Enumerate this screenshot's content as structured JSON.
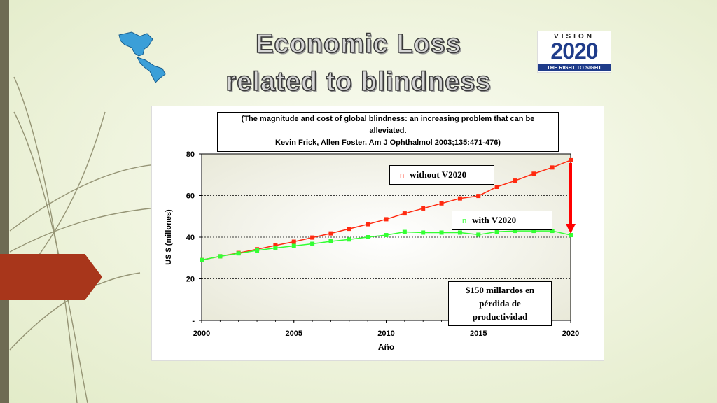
{
  "slide": {
    "title_line1": "Economic Loss",
    "title_line2": "related to blindness"
  },
  "logo": {
    "line1": "VISION",
    "line2": "2020",
    "line3": "THE RIGHT TO SIGHT"
  },
  "colors": {
    "left_bar": "#6e6b53",
    "red_tab": "#a8361b",
    "series_without": "#ff2a10",
    "series_with": "#33ff33",
    "arrow": "#ff0000"
  },
  "citation": {
    "line1": "(The magnitude and cost of global blindness: an increasing problem that can be",
    "line2": "alleviated.",
    "line3": "Kevin Frick, Allen Foster. Am J Ophthalmol 2003;135:471-476)"
  },
  "annotation": {
    "line1": "$150 millardos en",
    "line2": "pérdida de",
    "line3": "productividad"
  },
  "chart_data": {
    "type": "line",
    "xlabel": "Año",
    "ylabel": "US $ (millones)",
    "xlim": [
      2000,
      2020
    ],
    "ylim": [
      0,
      80
    ],
    "x_ticks": [
      "2000",
      "2005",
      "2010",
      "2015",
      "2020"
    ],
    "y_ticks": [
      "-",
      "20",
      "40",
      "60",
      "80"
    ],
    "grid": "horizontal dotted",
    "legend_marker": "n",
    "x": [
      2000,
      2001,
      2002,
      2003,
      2004,
      2005,
      2006,
      2007,
      2008,
      2009,
      2010,
      2011,
      2012,
      2013,
      2014,
      2015,
      2016,
      2017,
      2018,
      2019,
      2020
    ],
    "series": [
      {
        "name": "without V2020",
        "color": "#ff2a10",
        "values": [
          29,
          30.8,
          32.4,
          34.2,
          36,
          37.8,
          39.8,
          41.8,
          44,
          46.2,
          48.6,
          51.4,
          53.8,
          56.2,
          58.6,
          59.8,
          64.2,
          67.2,
          70.5,
          73.5,
          77
        ]
      },
      {
        "name": "with V2020",
        "color": "#33ff33",
        "values": [
          29,
          30.8,
          32.2,
          33.6,
          34.8,
          35.8,
          36.8,
          38,
          38.9,
          40,
          41,
          42.5,
          42.2,
          42.2,
          42.2,
          41.2,
          42.6,
          43,
          43,
          43,
          41
        ]
      }
    ]
  }
}
